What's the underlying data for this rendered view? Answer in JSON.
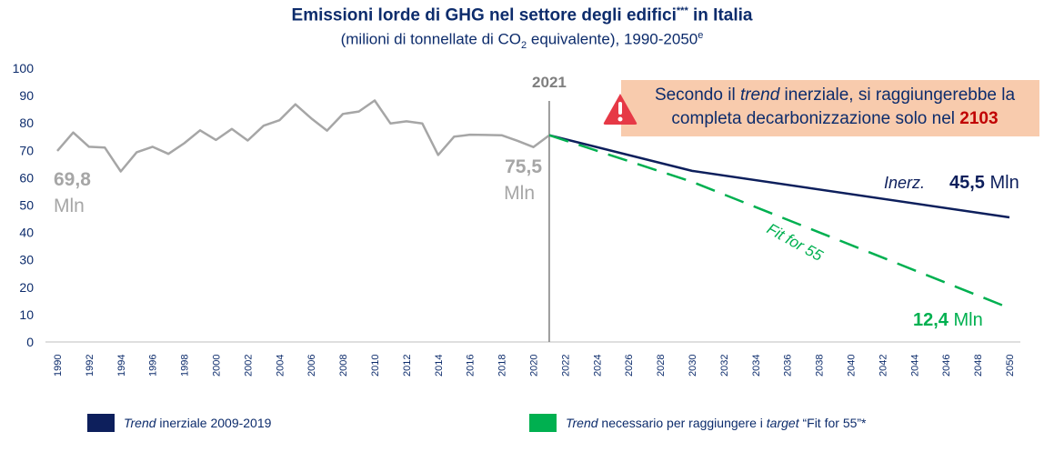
{
  "title": {
    "main": "Emissioni lorde di GHG nel settore degli edifici",
    "main_sup": "***",
    "main_end": " in Italia",
    "sub_a": "(milioni di tonnellate di CO",
    "sub_sub": "2",
    "sub_b": " equivalente), 1990-2050",
    "sub_sup": "e"
  },
  "callout": {
    "line1_a": "Secondo il ",
    "line1_em": "trend",
    "line1_b": " inerziale, si raggiungerebbe la",
    "line2": "completa decarbonizzazione solo nel ",
    "year": "2103"
  },
  "labels": {
    "divider_year": "2021",
    "start_value": "69,8",
    "start_unit": "Mln",
    "mid_value": "75,5",
    "mid_unit": "Mln",
    "inerz_tag": "Inerz.",
    "inerz_value": "45,5",
    "inerz_unit": " Mln",
    "ff55_tag": "Fit for 55",
    "ff55_value": "12,4",
    "ff55_unit": " Mln"
  },
  "legend": {
    "item1_em": "Trend",
    "item1_rest": " inerziale 2009-2019",
    "item2_em1": "Trend",
    "item2_mid": " necessario per raggiungere i ",
    "item2_em2": "target",
    "item2_end": " “Fit for 55”*"
  },
  "colors": {
    "historical": "#a6a6a6",
    "inertial": "#0d1f5c",
    "fit_for_55": "#00b050",
    "divider": "#7f7f7f",
    "text_dark": "#0d2c6c",
    "callout_bg": "#f8cbad",
    "warning_icon": "#e63946"
  },
  "chart_data": {
    "type": "line",
    "ylim": [
      0,
      100
    ],
    "yticks": [
      0,
      10,
      20,
      30,
      40,
      50,
      60,
      70,
      80,
      90,
      100
    ],
    "xlim": [
      1990,
      2050
    ],
    "xtick_labels": [
      "1990",
      "1992",
      "1994",
      "1996",
      "1998",
      "2000",
      "2002",
      "2004",
      "2006",
      "2008",
      "2010",
      "2012",
      "2014",
      "2016",
      "2018",
      "2020",
      "2022",
      "2024",
      "2026",
      "2028",
      "2030",
      "2032",
      "2034",
      "2036",
      "2038",
      "2040",
      "2042",
      "2044",
      "2046",
      "2048",
      "2050"
    ],
    "series": [
      {
        "key": "historical",
        "x": [
          1990,
          1991,
          1992,
          1993,
          1994,
          1995,
          1996,
          1997,
          1998,
          1999,
          2000,
          2001,
          2002,
          2003,
          2004,
          2005,
          2006,
          2007,
          2008,
          2009,
          2010,
          2011,
          2012,
          2013,
          2014,
          2015,
          2016,
          2017,
          2018,
          2019,
          2020,
          2021
        ],
        "y": [
          69.8,
          76.5,
          71.3,
          71.0,
          62.3,
          69.3,
          71.3,
          68.7,
          72.6,
          77.3,
          73.8,
          77.8,
          73.6,
          79.0,
          81.0,
          86.8,
          81.7,
          77.2,
          83.3,
          84.2,
          88.2,
          79.8,
          80.6,
          79.8,
          68.3,
          75.0,
          75.7,
          75.6,
          75.5,
          73.5,
          71.2,
          75.5
        ]
      },
      {
        "key": "inertial",
        "name": "Trend inerziale 2009-2019",
        "x": [
          2021,
          2030,
          2050
        ],
        "y": [
          75.5,
          62.5,
          45.5
        ]
      },
      {
        "key": "fit_for_55",
        "name": "Trend necessario per raggiungere i target “Fit for 55”*",
        "x": [
          2021,
          2030,
          2050
        ],
        "y": [
          75.5,
          58.5,
          12.4
        ]
      }
    ]
  }
}
